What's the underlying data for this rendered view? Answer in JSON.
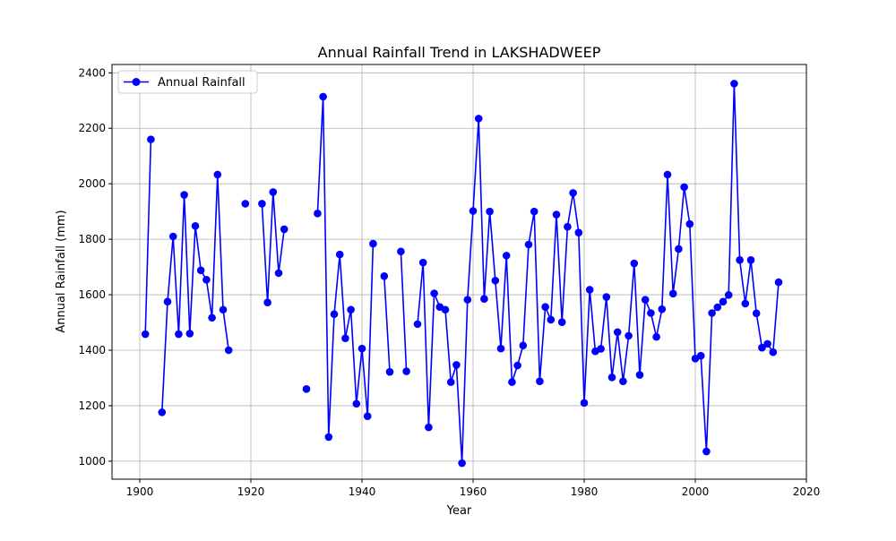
{
  "chart_data": {
    "type": "line",
    "title": "Annual Rainfall Trend in LAKSHADWEEP",
    "xlabel": "Year",
    "ylabel": "Annual Rainfall (mm)",
    "xlim": [
      1895,
      2020
    ],
    "ylim": [
      935,
      2430
    ],
    "xticks": [
      1900,
      1920,
      1940,
      1960,
      1980,
      2000,
      2020
    ],
    "yticks": [
      1000,
      1200,
      1400,
      1600,
      1800,
      2000,
      2200,
      2400
    ],
    "grid": true,
    "legend": "upper-left",
    "series": [
      {
        "name": "Annual Rainfall",
        "color": "#0000ff",
        "marker": "circle",
        "points": [
          [
            1901,
            1458
          ],
          [
            1902,
            2160
          ],
          [
            1903,
            null
          ],
          [
            1904,
            1176
          ],
          [
            1905,
            1575
          ],
          [
            1906,
            1810
          ],
          [
            1907,
            1458
          ],
          [
            1908,
            1960
          ],
          [
            1909,
            1460
          ],
          [
            1910,
            1848
          ],
          [
            1911,
            1688
          ],
          [
            1912,
            1654
          ],
          [
            1913,
            1517
          ],
          [
            1914,
            2033
          ],
          [
            1915,
            1546
          ],
          [
            1916,
            1400
          ],
          [
            1917,
            null
          ],
          [
            1918,
            null
          ],
          [
            1919,
            1928
          ],
          [
            1920,
            null
          ],
          [
            1921,
            null
          ],
          [
            1922,
            1928
          ],
          [
            1923,
            1572
          ],
          [
            1924,
            1970
          ],
          [
            1925,
            1678
          ],
          [
            1926,
            1836
          ],
          [
            1927,
            null
          ],
          [
            1928,
            null
          ],
          [
            1929,
            null
          ],
          [
            1930,
            1260
          ],
          [
            1931,
            null
          ],
          [
            1932,
            1893
          ],
          [
            1933,
            2314
          ],
          [
            1934,
            1087
          ],
          [
            1935,
            1530
          ],
          [
            1936,
            1745
          ],
          [
            1937,
            1443
          ],
          [
            1938,
            1546
          ],
          [
            1939,
            1207
          ],
          [
            1940,
            1406
          ],
          [
            1941,
            1162
          ],
          [
            1942,
            1784
          ],
          [
            1943,
            null
          ],
          [
            1944,
            1667
          ],
          [
            1945,
            1322
          ],
          [
            1946,
            null
          ],
          [
            1947,
            1756
          ],
          [
            1948,
            1324
          ],
          [
            1949,
            null
          ],
          [
            1950,
            1494
          ],
          [
            1951,
            1716
          ],
          [
            1952,
            1122
          ],
          [
            1953,
            1605
          ],
          [
            1954,
            1556
          ],
          [
            1955,
            1546
          ],
          [
            1956,
            1285
          ],
          [
            1957,
            1347
          ],
          [
            1958,
            993
          ],
          [
            1959,
            1582
          ],
          [
            1960,
            1902
          ],
          [
            1961,
            2235
          ],
          [
            1962,
            1585
          ],
          [
            1963,
            1900
          ],
          [
            1964,
            1651
          ],
          [
            1965,
            1406
          ],
          [
            1966,
            1741
          ],
          [
            1967,
            1285
          ],
          [
            1968,
            1345
          ],
          [
            1969,
            1417
          ],
          [
            1970,
            1781
          ],
          [
            1971,
            1900
          ],
          [
            1972,
            1288
          ],
          [
            1973,
            1556
          ],
          [
            1974,
            1510
          ],
          [
            1975,
            1889
          ],
          [
            1976,
            1501
          ],
          [
            1977,
            1845
          ],
          [
            1978,
            1967
          ],
          [
            1979,
            1824
          ],
          [
            1980,
            1210
          ],
          [
            1981,
            1618
          ],
          [
            1982,
            1396
          ],
          [
            1983,
            1405
          ],
          [
            1984,
            1592
          ],
          [
            1985,
            1302
          ],
          [
            1986,
            1465
          ],
          [
            1987,
            1288
          ],
          [
            1988,
            1452
          ],
          [
            1989,
            1713
          ],
          [
            1990,
            1311
          ],
          [
            1991,
            1582
          ],
          [
            1992,
            1534
          ],
          [
            1993,
            1448
          ],
          [
            1994,
            1548
          ],
          [
            1995,
            2033
          ],
          [
            1996,
            1604
          ],
          [
            1997,
            1765
          ],
          [
            1998,
            1988
          ],
          [
            1999,
            1855
          ],
          [
            2000,
            1370
          ],
          [
            2001,
            1380
          ],
          [
            2002,
            1035
          ],
          [
            2003,
            1534
          ],
          [
            2004,
            1555
          ],
          [
            2005,
            1575
          ],
          [
            2006,
            1599
          ],
          [
            2007,
            2361
          ],
          [
            2008,
            1725
          ],
          [
            2009,
            1568
          ],
          [
            2010,
            1725
          ],
          [
            2011,
            1533
          ],
          [
            2012,
            1409
          ],
          [
            2013,
            1423
          ],
          [
            2014,
            1393
          ],
          [
            2015,
            1645
          ]
        ]
      }
    ]
  }
}
